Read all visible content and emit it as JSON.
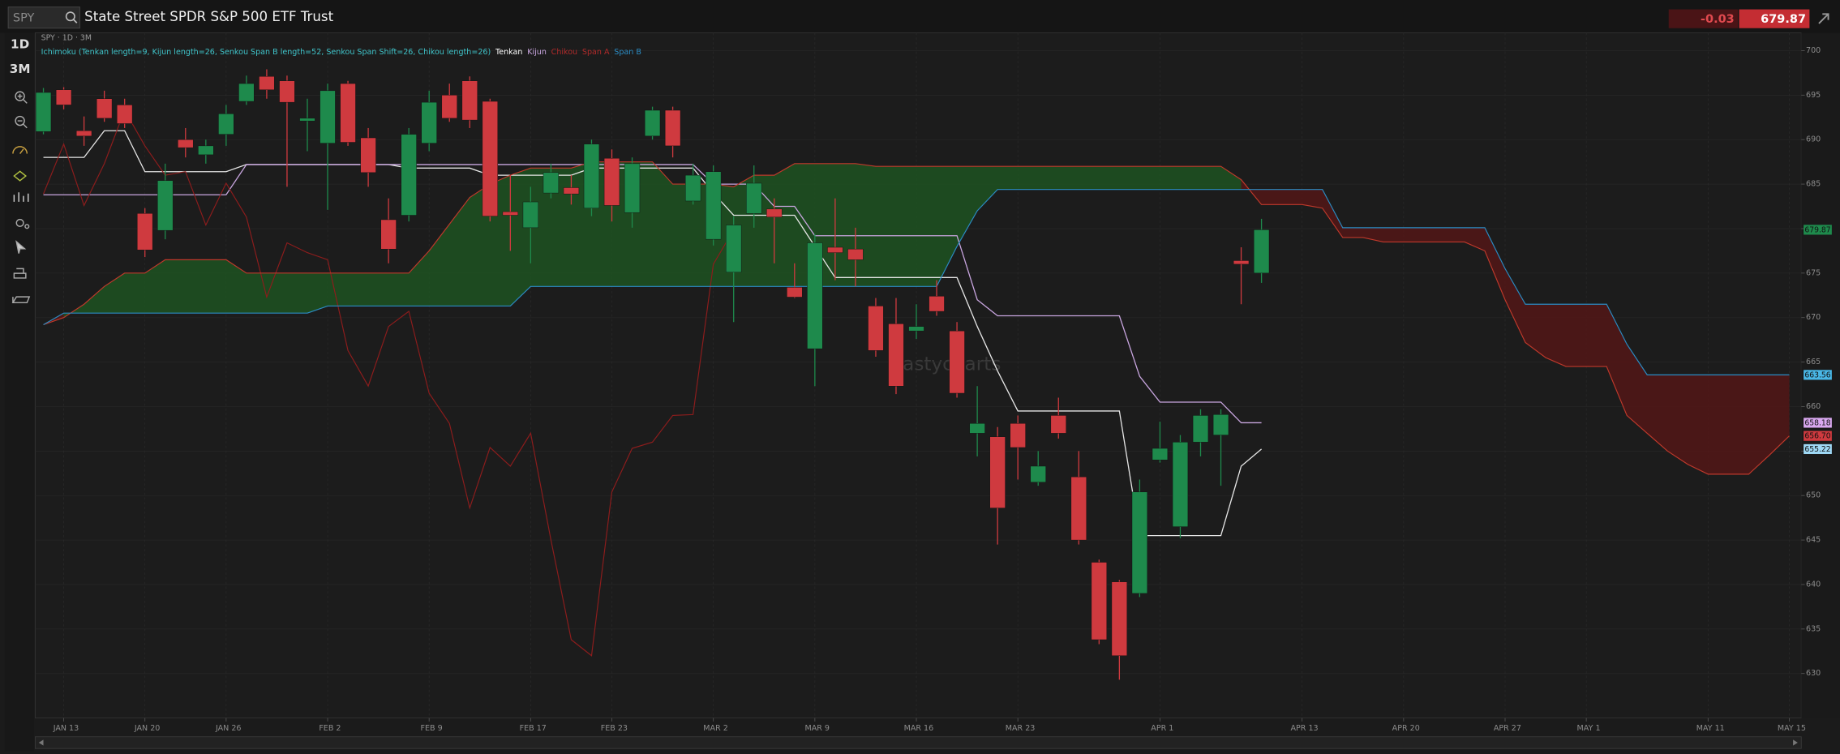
{
  "header": {
    "symbol": "SPY",
    "title": "State Street SPDR S&P 500 ETF Trust",
    "change": "-0.03",
    "last": "679.87"
  },
  "toolbar": {
    "items": [
      "1D",
      "3M"
    ]
  },
  "chart_data": {
    "type": "candlestick",
    "subtitle": "SPY · 1D · 3M",
    "indicator": "Ichimoku (Tenkan length=9, Kijun length=26, Senkou Span B length=52, Senkou Span Shift=26, Chikou length=26)",
    "watermark": "tastycharts",
    "categories": [
      null,
      "JAN 13",
      null,
      null,
      null,
      "JAN 20",
      null,
      null,
      null,
      "JAN 26",
      null,
      null,
      null,
      null,
      "FEB 2",
      null,
      null,
      null,
      null,
      "FEB 9",
      null,
      null,
      null,
      null,
      "FEB 17",
      null,
      null,
      null,
      "FEB 23",
      null,
      null,
      null,
      null,
      "MAR 2",
      null,
      null,
      null,
      null,
      "MAR 9",
      null,
      null,
      null,
      null,
      "MAR 16",
      null,
      null,
      null,
      null,
      "MAR 23",
      null,
      null,
      null,
      null,
      null,
      null,
      "APR 1",
      null,
      null,
      null,
      null,
      null,
      null,
      "APR 13",
      null,
      null,
      null,
      null,
      "APR 20",
      null,
      null,
      null,
      null,
      "APR 27",
      null,
      null,
      null,
      "MAY 1",
      null,
      null,
      null,
      null,
      null,
      "MAY 11",
      null,
      null,
      null,
      "MAY 15"
    ],
    "open": [
      690.9,
      695.6,
      691.0,
      694.6,
      693.9,
      681.7,
      679.8,
      690.0,
      688.3,
      690.6,
      694.3,
      697.1,
      696.6,
      692.1,
      689.6,
      696.3,
      690.2,
      681.0,
      681.5,
      689.6,
      695.0,
      696.6,
      694.3,
      681.9,
      680.1,
      684.0,
      684.6,
      682.3,
      687.9,
      681.8,
      690.4,
      693.3,
      683.1,
      678.8,
      675.1,
      681.7,
      682.2,
      673.4,
      666.5,
      677.9,
      677.7,
      671.3,
      669.3,
      668.5,
      672.4,
      668.5,
      657.0,
      656.6,
      658.1,
      651.5,
      659.0,
      652.1,
      642.5,
      640.3,
      639.0,
      654.0,
      646.5,
      656.0,
      656.8,
      676.4,
      675.0,
      null,
      null,
      null,
      null,
      null,
      null,
      null,
      null,
      null,
      null,
      null,
      null,
      null,
      null,
      null,
      null,
      null,
      null,
      null,
      null,
      null,
      null,
      null,
      null,
      null,
      null
    ],
    "high": [
      695.8,
      695.9,
      692.6,
      695.5,
      694.6,
      682.3,
      687.3,
      691.3,
      690.0,
      693.9,
      697.2,
      697.9,
      697.2,
      694.6,
      696.3,
      696.6,
      691.3,
      683.4,
      691.3,
      695.5,
      696.3,
      697.1,
      694.6,
      686.0,
      684.7,
      687.3,
      686.0,
      690.0,
      688.9,
      688.0,
      693.7,
      693.7,
      687.3,
      687.1,
      681.4,
      687.1,
      683.4,
      676.1,
      679.4,
      683.4,
      680.1,
      672.2,
      672.2,
      671.5,
      674.2,
      669.5,
      662.3,
      657.7,
      659.0,
      655.0,
      661.0,
      655.0,
      642.8,
      640.5,
      651.8,
      658.3,
      656.8,
      659.7,
      659.7,
      677.9,
      681.1,
      null,
      null,
      null,
      null,
      null,
      null,
      null,
      null,
      null,
      null,
      null,
      null,
      null,
      null,
      null,
      null,
      null,
      null,
      null,
      null,
      null,
      null,
      null,
      null,
      null,
      null
    ],
    "low": [
      690.6,
      693.4,
      689.3,
      692.0,
      691.3,
      676.8,
      678.8,
      688.0,
      687.3,
      689.3,
      693.9,
      694.6,
      684.7,
      688.7,
      682.1,
      689.3,
      684.7,
      676.1,
      680.8,
      688.7,
      692.0,
      691.3,
      680.8,
      677.5,
      676.1,
      683.4,
      682.7,
      681.4,
      680.8,
      680.1,
      690.0,
      688.0,
      682.7,
      678.1,
      669.5,
      680.1,
      676.1,
      672.2,
      662.3,
      674.2,
      673.5,
      665.6,
      661.4,
      667.6,
      670.2,
      661.0,
      654.4,
      644.5,
      651.8,
      651.1,
      656.4,
      644.5,
      633.3,
      629.3,
      638.6,
      653.7,
      645.2,
      654.4,
      651.1,
      671.5,
      673.9,
      null,
      null,
      null,
      null,
      null,
      null,
      null,
      null,
      null,
      null,
      null,
      null,
      null,
      null,
      null,
      null,
      null,
      null,
      null,
      null,
      null,
      null,
      null,
      null,
      null,
      null
    ],
    "close": [
      695.3,
      693.9,
      690.4,
      692.4,
      691.8,
      677.6,
      685.4,
      689.1,
      689.3,
      692.9,
      696.3,
      695.6,
      694.2,
      692.4,
      695.5,
      689.7,
      686.3,
      677.7,
      690.6,
      694.2,
      692.4,
      692.2,
      681.4,
      681.5,
      683.0,
      686.3,
      683.9,
      689.5,
      682.6,
      687.3,
      693.3,
      689.3,
      686.0,
      686.4,
      680.4,
      685.1,
      681.3,
      672.3,
      678.4,
      677.3,
      676.5,
      666.3,
      662.3,
      669.0,
      670.7,
      661.5,
      658.1,
      648.6,
      655.4,
      653.3,
      657.0,
      645.0,
      633.8,
      632.0,
      650.4,
      655.3,
      656.0,
      659.0,
      659.1,
      676.0,
      679.87,
      null,
      null,
      null,
      null,
      null,
      null,
      null,
      null,
      null,
      null,
      null,
      null,
      null,
      null,
      null,
      null,
      null,
      null,
      null,
      null,
      null,
      null,
      null,
      null,
      null,
      null
    ],
    "up_color": "#1e8a4c",
    "down_color": "#cf3a3f",
    "cloud_up_color": "#1d5a22",
    "cloud_down_color": "#5a1616",
    "lines": [
      {
        "name": "Tenkan",
        "color": "#e6e6e6",
        "values": [
          688.0,
          688.0,
          688.0,
          691.0,
          691.0,
          686.4,
          686.4,
          686.4,
          686.4,
          686.4,
          687.2,
          687.2,
          687.2,
          687.2,
          687.2,
          687.2,
          687.2,
          687.2,
          686.8,
          686.8,
          686.8,
          686.8,
          686.0,
          686.0,
          686.0,
          686.0,
          686.0,
          686.8,
          686.8,
          686.8,
          686.8,
          686.8,
          686.8,
          684.0,
          681.5,
          681.5,
          681.5,
          681.5,
          678.0,
          674.5,
          674.5,
          674.5,
          674.5,
          674.5,
          674.5,
          674.5,
          669.0,
          664.0,
          659.5,
          659.5,
          659.5,
          659.5,
          659.5,
          659.5,
          645.5,
          645.5,
          645.5,
          645.5,
          645.5,
          653.3,
          655.22,
          null,
          null,
          null,
          null,
          null,
          null,
          null,
          null,
          null,
          null,
          null,
          null,
          null,
          null,
          null,
          null,
          null,
          null,
          null,
          null,
          null,
          null,
          null,
          null,
          null,
          null
        ]
      },
      {
        "name": "Kijun",
        "color": "#c9a6e0",
        "values": [
          683.8,
          683.8,
          683.8,
          683.8,
          683.8,
          683.8,
          683.8,
          683.8,
          683.8,
          683.8,
          687.2,
          687.2,
          687.2,
          687.2,
          687.2,
          687.2,
          687.2,
          687.2,
          687.2,
          687.2,
          687.2,
          687.2,
          687.2,
          687.2,
          687.2,
          687.2,
          687.2,
          687.2,
          687.2,
          687.2,
          687.2,
          687.2,
          687.2,
          685.0,
          685.0,
          685.0,
          682.5,
          682.5,
          679.2,
          679.2,
          679.2,
          679.2,
          679.2,
          679.2,
          679.2,
          679.2,
          672.0,
          670.2,
          670.2,
          670.2,
          670.2,
          670.2,
          670.2,
          670.2,
          663.4,
          660.5,
          660.5,
          660.5,
          660.5,
          658.18,
          658.18,
          null,
          null,
          null,
          null,
          null,
          null,
          null,
          null,
          null,
          null,
          null,
          null,
          null,
          null,
          null,
          null,
          null,
          null,
          null,
          null,
          null,
          null,
          null,
          null,
          null,
          null
        ]
      },
      {
        "name": "Chikou",
        "color": "#8e1c1c",
        "values": [
          683.9,
          689.5,
          682.6,
          687.3,
          693.3,
          689.3,
          686.0,
          686.4,
          680.4,
          685.1,
          681.3,
          672.3,
          678.4,
          677.3,
          676.5,
          666.3,
          662.3,
          669.0,
          670.7,
          661.5,
          658.1,
          648.6,
          655.4,
          653.3,
          657.0,
          645.0,
          633.8,
          632.0,
          650.4,
          655.3,
          656.0,
          659.0,
          659.1,
          676.0,
          679.87,
          null,
          null,
          null,
          null,
          null,
          null,
          null,
          null,
          null,
          null,
          null,
          null,
          null,
          null,
          null,
          null,
          null,
          null,
          null,
          null,
          null,
          null,
          null,
          null,
          null,
          null,
          null,
          null,
          null,
          null,
          null,
          null,
          null,
          null,
          null,
          null,
          null,
          null,
          null,
          null,
          null,
          null,
          null,
          null,
          null,
          null,
          null,
          null,
          null,
          null,
          null,
          null
        ]
      },
      {
        "name": "Span A",
        "color": "#c0392b",
        "values": [
          669.2,
          670.0,
          671.5,
          673.5,
          675.0,
          675.0,
          676.5,
          676.5,
          676.5,
          676.5,
          675.0,
          675.0,
          675.0,
          675.0,
          675.0,
          675.0,
          675.0,
          675.0,
          675.0,
          677.5,
          680.5,
          683.5,
          685.0,
          686.0,
          686.8,
          686.8,
          686.8,
          687.5,
          687.5,
          687.5,
          687.5,
          685.0,
          685.0,
          685.0,
          684.7,
          686.0,
          686.0,
          687.3,
          687.3,
          687.3,
          687.3,
          687.0,
          687.0,
          687.0,
          687.0,
          687.0,
          687.0,
          687.0,
          687.0,
          687.0,
          687.0,
          687.0,
          687.0,
          687.0,
          687.0,
          687.0,
          687.0,
          687.0,
          687.0,
          685.5,
          682.7,
          682.7,
          682.7,
          682.3,
          679.0,
          679.0,
          678.5,
          678.5,
          678.5,
          678.5,
          678.5,
          677.5,
          672.0,
          667.2,
          665.5,
          664.5,
          664.5,
          664.5,
          659.0,
          657.0,
          655.0,
          653.5,
          652.4,
          652.4,
          652.4,
          654.5,
          656.7
        ]
      },
      {
        "name": "Span B",
        "color": "#2b8cc4",
        "values": [
          669.2,
          670.5,
          670.5,
          670.5,
          670.5,
          670.5,
          670.5,
          670.5,
          670.5,
          670.5,
          670.5,
          670.5,
          670.5,
          670.5,
          671.3,
          671.3,
          671.3,
          671.3,
          671.3,
          671.3,
          671.3,
          671.3,
          671.3,
          671.3,
          673.5,
          673.5,
          673.5,
          673.5,
          673.5,
          673.5,
          673.5,
          673.5,
          673.5,
          673.5,
          673.5,
          673.5,
          673.5,
          673.5,
          673.5,
          673.5,
          673.5,
          673.5,
          673.5,
          673.5,
          673.5,
          678.0,
          682.0,
          684.4,
          684.4,
          684.4,
          684.4,
          684.4,
          684.4,
          684.4,
          684.4,
          684.4,
          684.4,
          684.4,
          684.4,
          684.4,
          684.4,
          684.4,
          684.4,
          684.4,
          680.1,
          680.1,
          680.1,
          680.1,
          680.1,
          680.1,
          680.1,
          680.1,
          675.5,
          671.5,
          671.5,
          671.5,
          671.5,
          671.5,
          667.0,
          663.56,
          663.56,
          663.56,
          663.56,
          663.56,
          663.56,
          663.56,
          663.56
        ]
      }
    ],
    "legend_colors": [
      "#ffffff",
      "#c9a6e0",
      "#b02a2a",
      "#b02a2a",
      "#2b8cc4"
    ],
    "last_labels": [
      {
        "value": 679.87,
        "label": "679.87",
        "color": "#1e8a4c"
      },
      {
        "value": 663.56,
        "label": "663.56",
        "color": "#49b7e6"
      },
      {
        "value": 658.18,
        "label": "658.18",
        "color": "#d9a8f0"
      },
      {
        "value": 656.7,
        "label": "656.70",
        "color": "#cf3a3f"
      },
      {
        "value": 655.22,
        "label": "655.22",
        "color": "#9fd8f5"
      }
    ],
    "ylim": [
      625,
      702
    ],
    "yticks": [
      630,
      635,
      640,
      645,
      650,
      655,
      660,
      665,
      670,
      675,
      680,
      685,
      690,
      695,
      700
    ],
    "grid": true
  }
}
